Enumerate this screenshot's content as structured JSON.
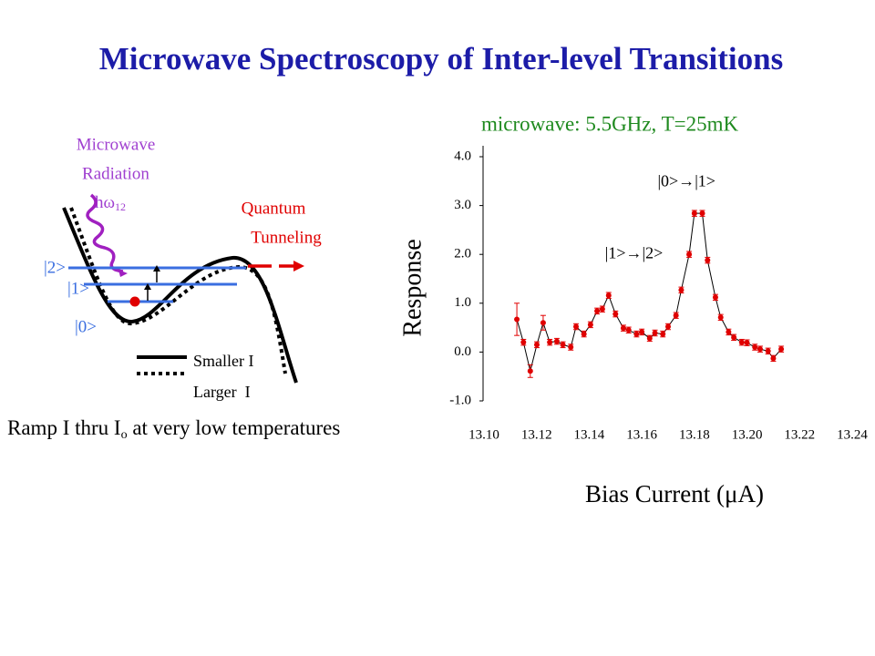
{
  "title": "Microwave Spectroscopy of Inter-level Transitions",
  "diagram": {
    "radiation_lines": [
      "Microwave",
      "Radiation"
    ],
    "photon": "hω",
    "photon_sub": "12",
    "tunneling_lines": [
      "Quantum",
      "Tunneling"
    ],
    "levels": [
      "|2>",
      "|1>",
      "|0>"
    ],
    "legend": [
      "Smaller I",
      "Larger  I"
    ],
    "caption": [
      "Ramp I thru I",
      "o",
      " at very low temperatures"
    ]
  },
  "chart_data": {
    "type": "line",
    "subtitle": "microwave: 5.5GHz, T=25mK",
    "xlabel": "Bias Current (μA)",
    "ylabel": "Response",
    "color": "#e00000",
    "x": [
      13.1125,
      13.115,
      13.1176,
      13.1201,
      13.1225,
      13.125,
      13.1277,
      13.13,
      13.133,
      13.135,
      13.138,
      13.1405,
      13.143,
      13.145,
      13.1474,
      13.15,
      13.153,
      13.155,
      13.158,
      13.16,
      13.163,
      13.165,
      13.168,
      13.17,
      13.173,
      13.175,
      13.178,
      13.18,
      13.183,
      13.185,
      13.188,
      13.19,
      13.193,
      13.195,
      13.198,
      13.2,
      13.203,
      13.205,
      13.208,
      13.21,
      13.213
    ],
    "values": [
      0.67,
      0.2,
      -0.39,
      0.15,
      0.6,
      0.2,
      0.22,
      0.15,
      0.1,
      0.52,
      0.37,
      0.56,
      0.84,
      0.88,
      1.16,
      0.78,
      0.49,
      0.45,
      0.37,
      0.41,
      0.28,
      0.39,
      0.37,
      0.52,
      0.75,
      1.27,
      2.0,
      2.84,
      2.84,
      1.88,
      1.12,
      0.71,
      0.41,
      0.3,
      0.2,
      0.19,
      0.1,
      0.06,
      0.02,
      -0.13,
      0.06
    ],
    "errors": [
      0.33,
      0.06,
      0.13,
      0.06,
      0.15,
      0.06,
      0.06,
      0.06,
      0.06,
      0.06,
      0.06,
      0.06,
      0.06,
      0.06,
      0.06,
      0.06,
      0.06,
      0.06,
      0.06,
      0.06,
      0.06,
      0.06,
      0.06,
      0.06,
      0.06,
      0.06,
      0.06,
      0.06,
      0.06,
      0.06,
      0.06,
      0.06,
      0.06,
      0.06,
      0.06,
      0.06,
      0.06,
      0.06,
      0.06,
      0.06,
      0.06
    ],
    "xlim": [
      13.1,
      13.24
    ],
    "xticks": [
      {
        "value": 13.1,
        "label": "13.10"
      },
      13.12,
      13.14,
      13.16,
      13.18,
      {
        "value": 13.2,
        "label": "13.20"
      },
      13.22,
      13.24
    ],
    "ylim": [
      -1,
      4
    ],
    "yticks": [
      {
        "value": -1,
        "label": "-1.0"
      },
      {
        "value": 0,
        "label": "0.0"
      },
      {
        "value": 1,
        "label": "1.0"
      },
      {
        "value": 2,
        "label": "2.0"
      },
      {
        "value": 3,
        "label": "3.0"
      },
      {
        "value": 4,
        "label": "4.0"
      }
    ],
    "annotations": [
      {
        "text": "|0>→|1>",
        "x": 13.177,
        "y": 3.47
      },
      {
        "text": "|1>→|2>",
        "x": 13.157,
        "y": 2.0
      }
    ]
  }
}
